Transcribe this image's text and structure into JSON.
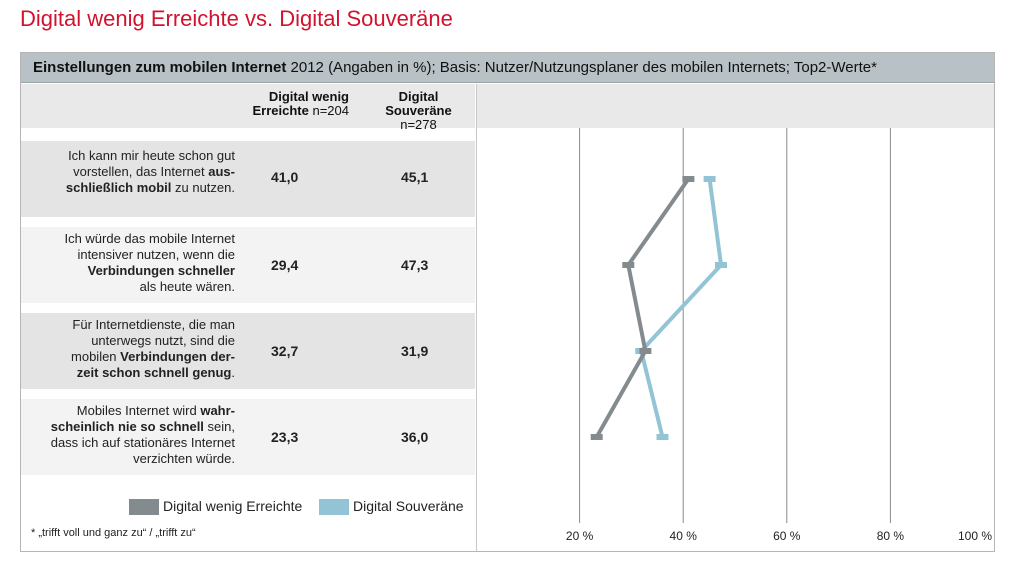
{
  "title": "Digital wenig Erreichte vs. Digital Souveräne",
  "header": {
    "bold_part": "Einstellungen zum mobilen Internet",
    "rest": " 2012 (Angaben in %); Basis: Nutzer/Nutzungsplaner des mobilen Internets; Top2-Werte*"
  },
  "columns": {
    "col1_bold": "Digital wenig",
    "col1_line2_bold": "Erreichte",
    "col1_n": " n=204",
    "col2_bold": "Digital",
    "col2_line2_bold": "Souveräne",
    "col2_n": " n=278"
  },
  "rows": [
    {
      "t1": "Ich kann mir heute schon gut",
      "t2": "vorstellen, das Internet ",
      "t2b": "aus-",
      "t3b": "schließlich mobil",
      "t3": " zu nutzen.",
      "v1": "41,0",
      "v2": "45,1"
    },
    {
      "t1": "Ich würde das mobile Internet",
      "t2": "intensiver nutzen, wenn die",
      "t3b": "Verbindungen schneller",
      "t4": "als heute wären.",
      "v1": "29,4",
      "v2": "47,3"
    },
    {
      "t1": "Für Internetdienste, die man",
      "t2": "unterwegs nutzt, sind die",
      "t3": "mobilen ",
      "t3b": "Verbindungen der-",
      "t4b": "zeit schon schnell genug",
      "t4": ".",
      "v1": "32,7",
      "v2": "31,9"
    },
    {
      "t1": "Mobiles Internet wird ",
      "t1b": "wahr-",
      "t2b": "scheinlich nie so schnell",
      "t2": " sein,",
      "t3": "dass ich auf stationäres Internet",
      "t4": "verzichten würde.",
      "v1": "23,3",
      "v2": "36,0"
    }
  ],
  "legend": {
    "series1": "Digital wenig Erreichte",
    "series2": "Digital Souveräne"
  },
  "footnote": "* „trifft voll und ganz zu“ / „trifft zu“",
  "colors": {
    "title": "#d2122e",
    "series1": "#848b8f",
    "series2": "#93c4d6",
    "header_bar": "#b8c1c5"
  },
  "chart_data": {
    "type": "line",
    "orientation": "horizontal",
    "title": "Einstellungen zum mobilen Internet 2012 (Angaben in %)",
    "categories": [
      "Ich kann mir heute schon gut vorstellen, das Internet ausschließlich mobil zu nutzen.",
      "Ich würde das mobile Internet intensiver nutzen, wenn die Verbindungen schneller als heute wären.",
      "Für Internetdienste, die man unterwegs nutzt, sind die mobilen Verbindungen derzeit schon schnell genug.",
      "Mobiles Internet wird wahrscheinlich nie so schnell sein, dass ich auf stationäres Internet verzichten würde."
    ],
    "series": [
      {
        "name": "Digital wenig Erreichte",
        "values": [
          41.0,
          29.4,
          32.7,
          23.3
        ]
      },
      {
        "name": "Digital Souveräne",
        "values": [
          45.1,
          47.3,
          31.9,
          36.0
        ]
      }
    ],
    "xticks": [
      "20 %",
      "40 %",
      "60 %",
      "80 %",
      "100 %"
    ],
    "xtick_values": [
      20,
      40,
      60,
      80,
      100
    ],
    "xlim": [
      0,
      100
    ],
    "grid": true,
    "legend_position": "bottom-left"
  }
}
